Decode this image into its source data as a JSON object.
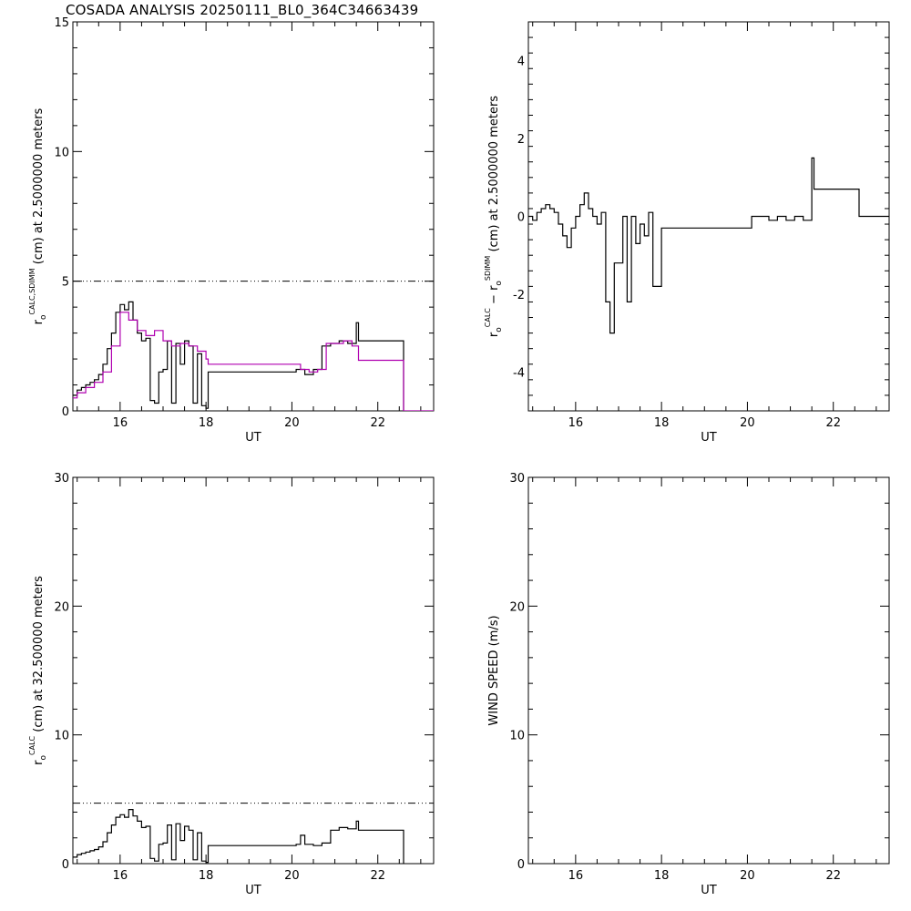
{
  "title": "COSADA ANALYSIS 20250111_BL0_364C34663439",
  "chart_data": [
    {
      "id": "tl",
      "type": "line",
      "xlabel": "UT",
      "ylabel": {
        "base": "r",
        "sub": "o",
        "sup": "CALC,SDIMM",
        "rest": " (cm)  at  2.5000000 meters"
      },
      "xlim": [
        14.9,
        23.3
      ],
      "ylim": [
        0,
        15
      ],
      "xticks": [
        16,
        18,
        20,
        22
      ],
      "yticks": [
        0,
        5,
        10,
        15
      ],
      "reference_line": {
        "y": 5,
        "style": "dash-dot"
      },
      "series": [
        {
          "color": "#000000",
          "x": [
            14.9,
            15.0,
            15.1,
            15.2,
            15.3,
            15.4,
            15.5,
            15.6,
            15.7,
            15.8,
            15.9,
            16.0,
            16.1,
            16.2,
            16.3,
            16.4,
            16.5,
            16.6,
            16.7,
            16.8,
            16.9,
            17.0,
            17.1,
            17.2,
            17.3,
            17.4,
            17.5,
            17.6,
            17.7,
            17.8,
            17.9,
            18.0,
            18.05,
            20.0,
            20.1,
            20.3,
            20.5,
            20.7,
            20.9,
            21.1,
            21.3,
            21.5,
            21.55,
            22.6,
            22.6
          ],
          "y": [
            0.6,
            0.8,
            0.9,
            1.0,
            1.1,
            1.2,
            1.4,
            1.8,
            2.4,
            3.0,
            3.8,
            4.1,
            3.9,
            4.2,
            3.5,
            3.0,
            2.7,
            2.8,
            0.4,
            0.3,
            1.5,
            1.6,
            2.7,
            0.3,
            2.6,
            1.8,
            2.7,
            2.5,
            0.3,
            2.2,
            0.2,
            0.1,
            1.5,
            1.5,
            1.6,
            1.4,
            1.6,
            2.5,
            2.6,
            2.7,
            2.6,
            3.4,
            2.7,
            2.7,
            0
          ]
        },
        {
          "color": "#b000b0",
          "x": [
            14.9,
            15.0,
            15.2,
            15.4,
            15.6,
            15.8,
            16.0,
            16.2,
            16.4,
            16.6,
            16.8,
            17.0,
            17.2,
            17.4,
            17.6,
            17.8,
            18.0,
            18.05,
            20.0,
            20.2,
            20.4,
            20.6,
            20.8,
            21.0,
            21.2,
            21.4,
            21.55,
            22.6,
            22.6,
            23.3
          ],
          "y": [
            0.5,
            0.7,
            0.9,
            1.1,
            1.5,
            2.5,
            3.8,
            3.5,
            3.1,
            2.9,
            3.1,
            2.7,
            2.5,
            2.6,
            2.5,
            2.3,
            2.0,
            1.8,
            1.8,
            1.6,
            1.5,
            1.6,
            2.6,
            2.6,
            2.7,
            2.5,
            1.95,
            1.95,
            0,
            0
          ]
        }
      ]
    },
    {
      "id": "tr",
      "type": "line",
      "xlabel": "UT",
      "ylabel": {
        "base": "r",
        "sub": "o",
        "sup": "CALC",
        "mid": "  −  r",
        "sub2": "o",
        "sup2": "SDIMM",
        "rest": " (cm)  at  2.5000000 meters"
      },
      "xlim": [
        14.9,
        23.3
      ],
      "ylim": [
        -5,
        5
      ],
      "xticks": [
        16,
        18,
        20,
        22
      ],
      "yticks": [
        -4,
        -2,
        0,
        2,
        4
      ],
      "series": [
        {
          "color": "#000000",
          "x": [
            14.9,
            15.0,
            15.1,
            15.2,
            15.3,
            15.4,
            15.5,
            15.6,
            15.7,
            15.8,
            15.9,
            16.0,
            16.1,
            16.2,
            16.3,
            16.4,
            16.5,
            16.6,
            16.7,
            16.8,
            16.9,
            17.0,
            17.1,
            17.2,
            17.3,
            17.4,
            17.5,
            17.6,
            17.7,
            17.8,
            17.9,
            18.0,
            18.05,
            20.0,
            20.1,
            20.3,
            20.5,
            20.7,
            20.9,
            21.1,
            21.3,
            21.5,
            21.55,
            22.6,
            22.6,
            23.3
          ],
          "y": [
            0,
            -0.1,
            0.1,
            0.2,
            0.3,
            0.2,
            0.1,
            -0.2,
            -0.5,
            -0.8,
            -0.3,
            0,
            0.3,
            0.6,
            0.2,
            0,
            -0.2,
            0.1,
            -2.2,
            -3.0,
            -1.2,
            -1.2,
            0,
            -2.2,
            0,
            -0.7,
            -0.2,
            -0.5,
            0.1,
            -1.8,
            -1.8,
            -0.3,
            -0.3,
            -0.3,
            0,
            0,
            -0.1,
            0,
            -0.1,
            0,
            -0.1,
            1.5,
            0.7,
            0.7,
            0,
            0
          ]
        }
      ]
    },
    {
      "id": "bl",
      "type": "line",
      "xlabel": "UT",
      "ylabel": {
        "base": "r",
        "sub": "o",
        "sup": "CALC",
        "rest": " (cm)  at  32.500000 meters"
      },
      "xlim": [
        14.9,
        23.3
      ],
      "ylim": [
        0,
        30
      ],
      "xticks": [
        16,
        18,
        20,
        22
      ],
      "yticks": [
        0,
        10,
        20,
        30
      ],
      "reference_line": {
        "y": 4.7,
        "style": "dash-dot"
      },
      "series": [
        {
          "color": "#000000",
          "x": [
            14.9,
            15.0,
            15.1,
            15.2,
            15.3,
            15.4,
            15.5,
            15.6,
            15.7,
            15.8,
            15.9,
            16.0,
            16.1,
            16.2,
            16.3,
            16.4,
            16.5,
            16.6,
            16.7,
            16.8,
            16.9,
            17.0,
            17.1,
            17.2,
            17.3,
            17.4,
            17.5,
            17.6,
            17.7,
            17.8,
            17.9,
            18.0,
            18.05,
            20.0,
            20.1,
            20.2,
            20.3,
            20.5,
            20.7,
            20.9,
            21.1,
            21.3,
            21.5,
            21.55,
            22.6,
            22.6
          ],
          "y": [
            0.5,
            0.7,
            0.8,
            0.9,
            1.0,
            1.1,
            1.3,
            1.7,
            2.4,
            3.0,
            3.6,
            3.8,
            3.6,
            4.2,
            3.7,
            3.3,
            2.8,
            2.9,
            0.4,
            0.2,
            1.5,
            1.6,
            3.0,
            0.3,
            3.1,
            1.8,
            2.9,
            2.6,
            0.3,
            2.4,
            0.2,
            0.1,
            1.4,
            1.4,
            1.5,
            2.2,
            1.5,
            1.4,
            1.6,
            2.6,
            2.8,
            2.7,
            3.3,
            2.6,
            2.6,
            0
          ]
        }
      ]
    },
    {
      "id": "br",
      "type": "line",
      "xlabel": "UT",
      "ylabel": {
        "base": "WIND SPEED (m/s)"
      },
      "xlim": [
        14.9,
        23.3
      ],
      "ylim": [
        0,
        30
      ],
      "xticks": [
        16,
        18,
        20,
        22
      ],
      "yticks": [
        0,
        10,
        20,
        30
      ],
      "series": []
    }
  ]
}
